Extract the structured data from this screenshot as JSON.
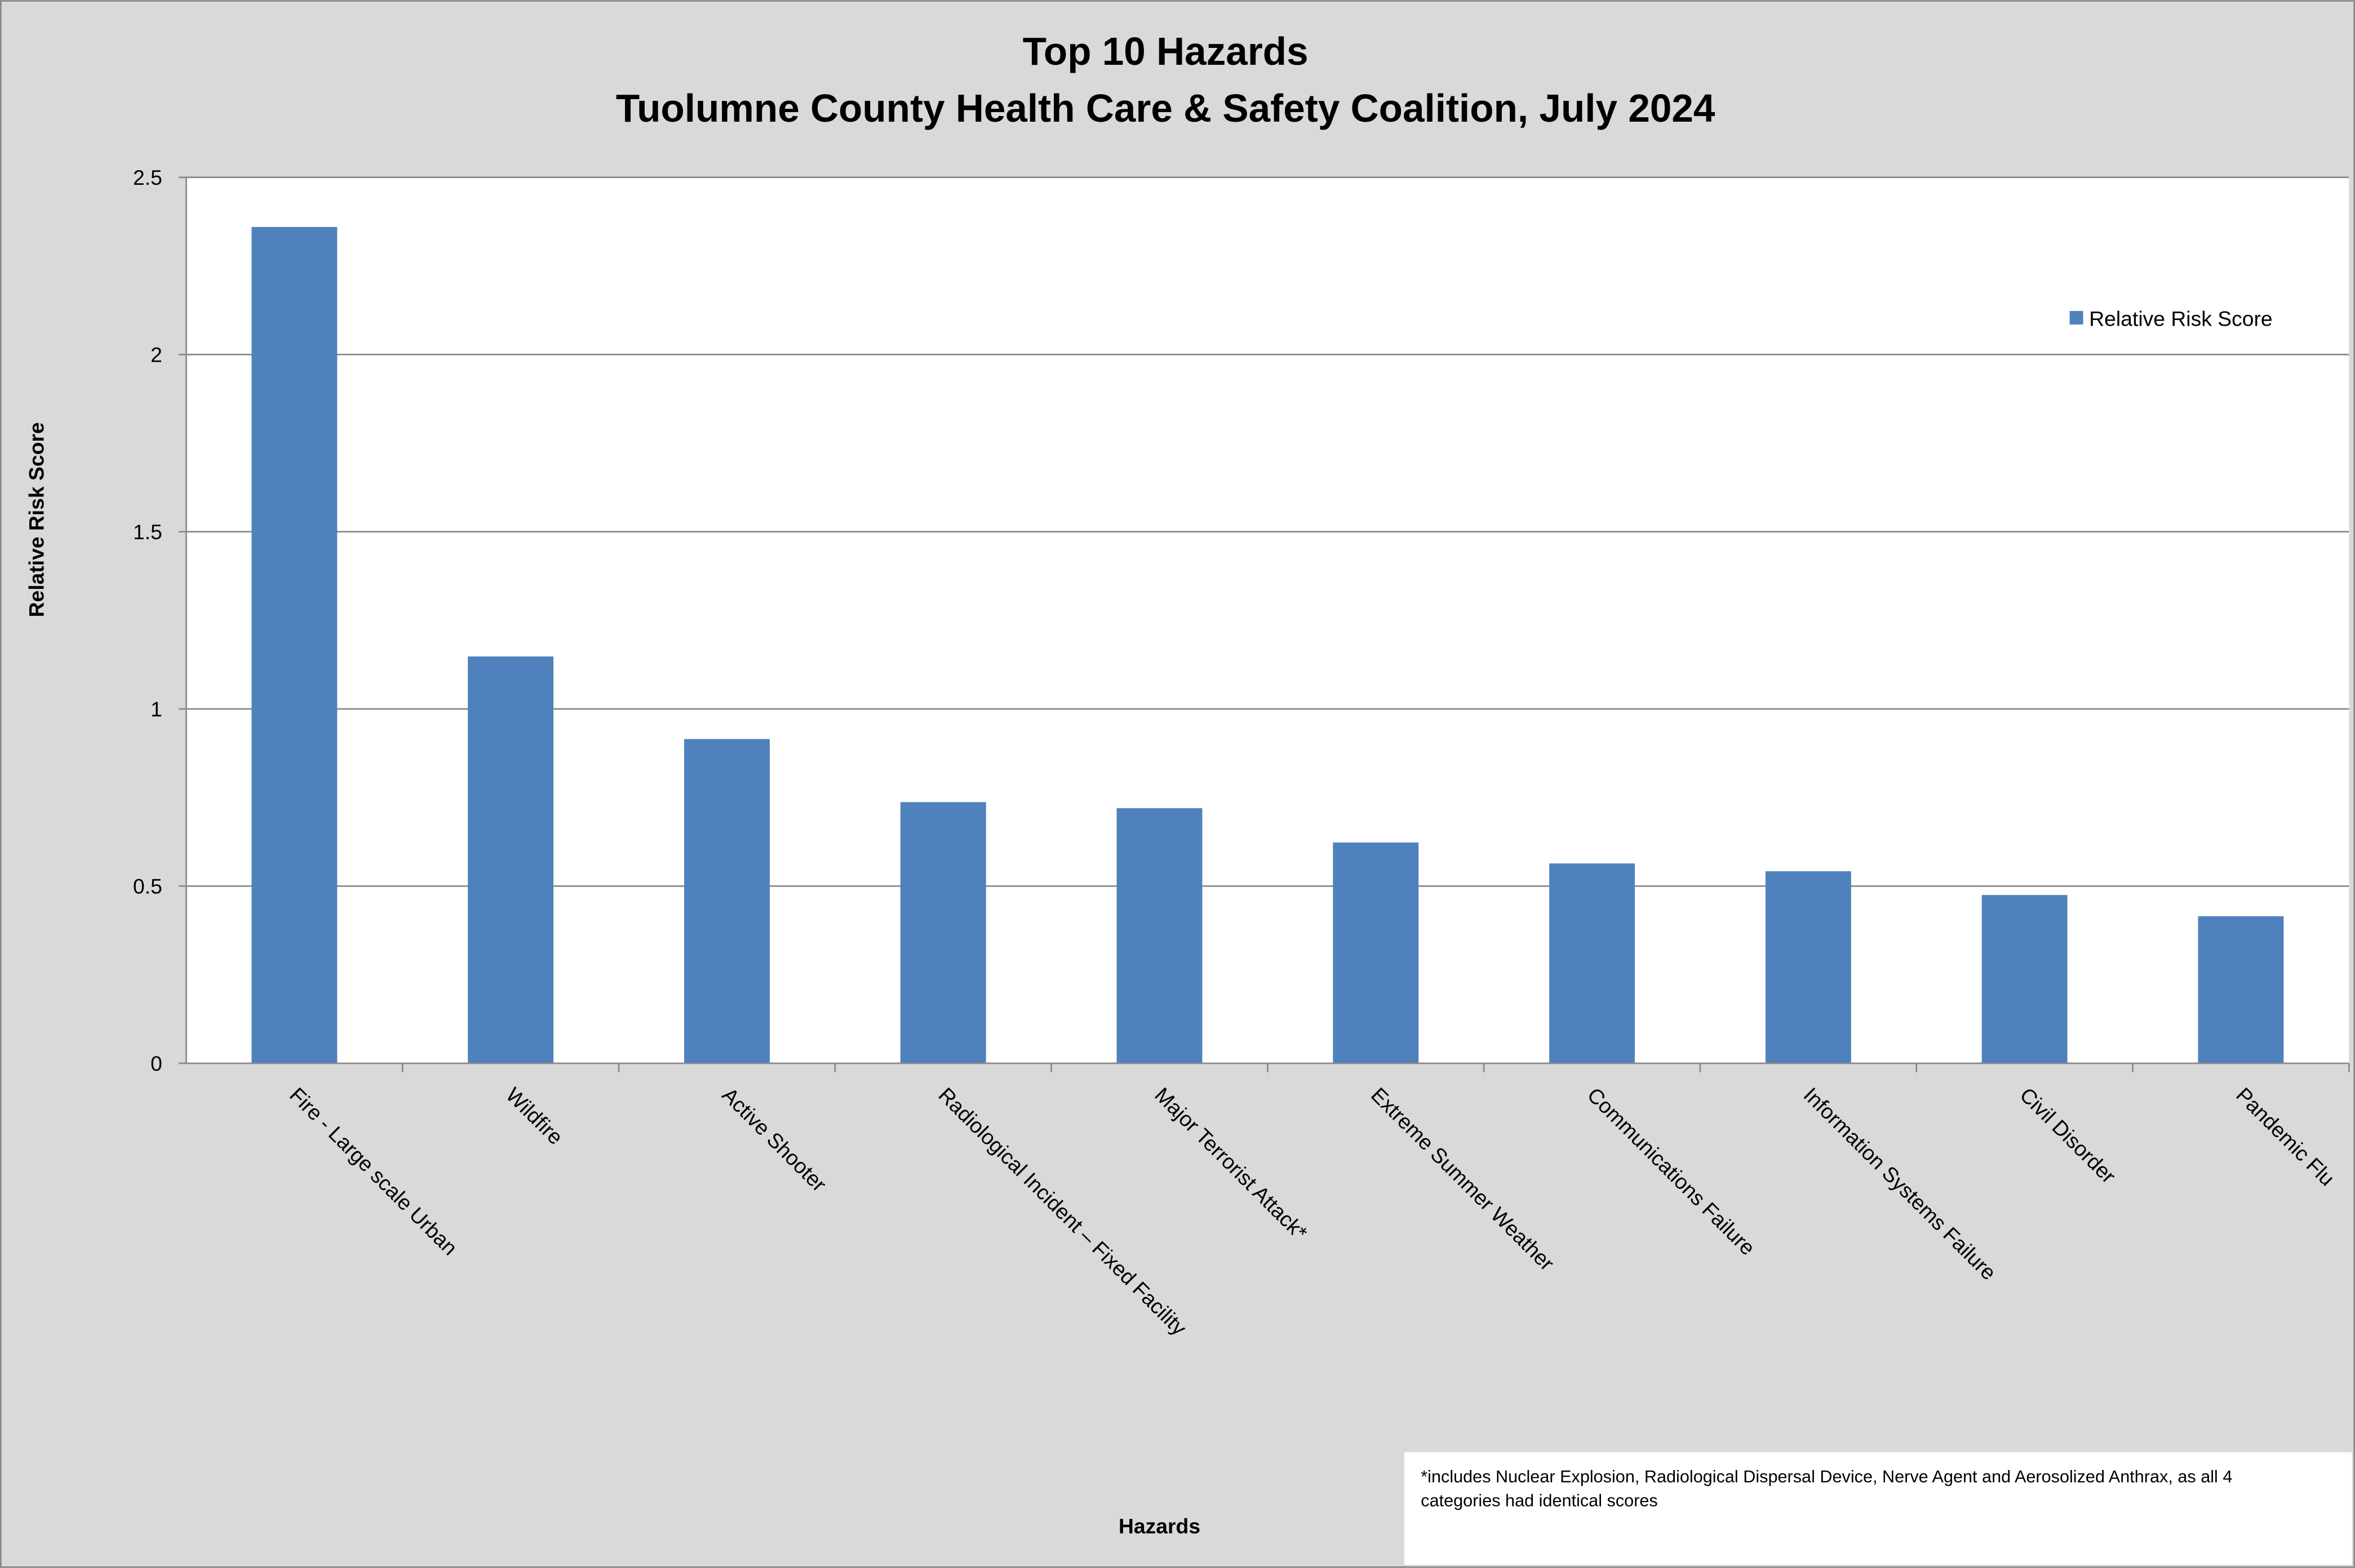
{
  "chart_data": {
    "type": "bar",
    "title": "Top 10 Hazards",
    "subtitle": "Tuolumne County Health Care & Safety Coalition, July 2024",
    "xlabel": "Hazards",
    "ylabel": "Relative Risk Score",
    "ylim": [
      0,
      2.5
    ],
    "yticks": [
      "0",
      "0.5",
      "1",
      "1.5",
      "2",
      "2.5"
    ],
    "ytick_values": [
      0,
      0.5,
      1,
      1.5,
      2,
      2.5
    ],
    "grid": true,
    "legend_position": "top-right",
    "categories": [
      "Fire - Large scale Urban",
      "Wildfire",
      "Active Shooter",
      "Radiological Incident – Fixed Facility",
      "Major Terrorist Attack*",
      "Extreme Summer Weather",
      "Communications Failure",
      "Information Systems Failure",
      "Civil Disorder",
      "Pandemic Flu"
    ],
    "series": [
      {
        "name": "Relative Risk Score",
        "color": "#4f81bd",
        "values": [
          2.36,
          1.148,
          0.915,
          0.737,
          0.72,
          0.623,
          0.564,
          0.542,
          0.475,
          0.415
        ]
      }
    ],
    "footnote_lines": [
      "*includes Nuclear Explosion, Radiological Dispersal Device, Nerve Agent and Aerosolized Anthrax, as all 4",
      "categories had identical scores"
    ]
  }
}
